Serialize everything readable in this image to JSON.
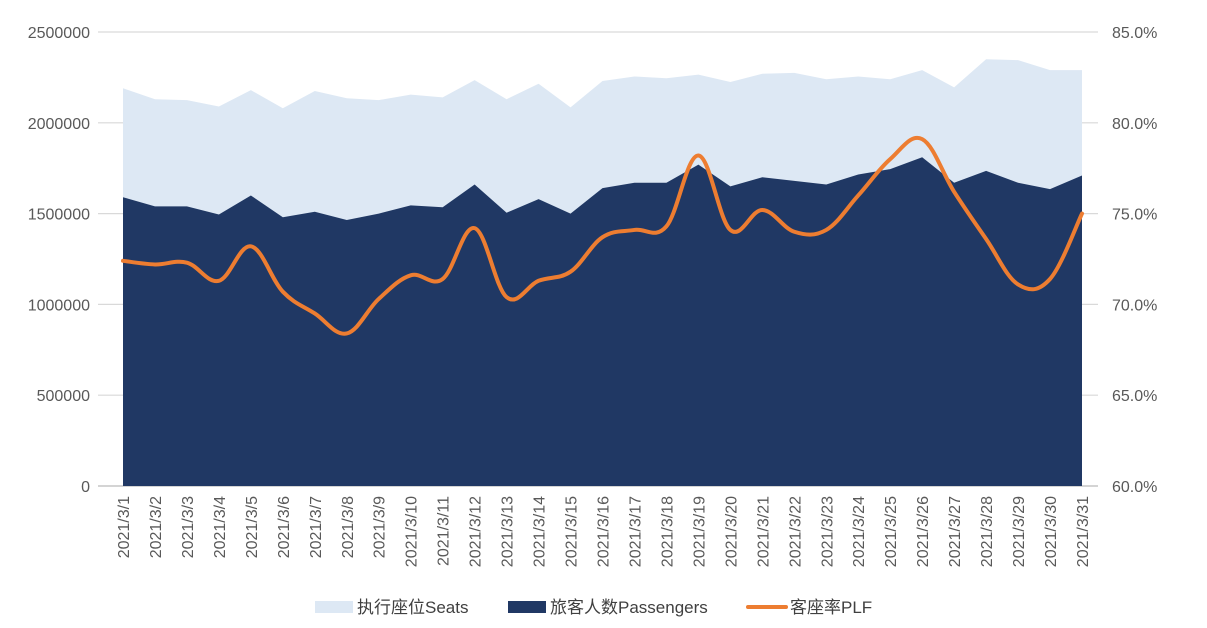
{
  "chart_data": {
    "type": "area",
    "categories": [
      "2021/3/1",
      "2021/3/2",
      "2021/3/3",
      "2021/3/4",
      "2021/3/5",
      "2021/3/6",
      "2021/3/7",
      "2021/3/8",
      "2021/3/9",
      "2021/3/10",
      "2021/3/11",
      "2021/3/12",
      "2021/3/13",
      "2021/3/14",
      "2021/3/15",
      "2021/3/16",
      "2021/3/17",
      "2021/3/18",
      "2021/3/19",
      "2021/3/20",
      "2021/3/21",
      "2021/3/22",
      "2021/3/23",
      "2021/3/24",
      "2021/3/25",
      "2021/3/26",
      "2021/3/27",
      "2021/3/28",
      "2021/3/29",
      "2021/3/30",
      "2021/3/31"
    ],
    "series": [
      {
        "name": "执行座位Seats",
        "kind": "area",
        "axis": "left",
        "color": "#dde8f4",
        "values": [
          2190000,
          2130000,
          2125000,
          2090000,
          2180000,
          2080000,
          2175000,
          2135000,
          2125000,
          2155000,
          2140000,
          2235000,
          2130000,
          2215000,
          2085000,
          2230000,
          2255000,
          2245000,
          2265000,
          2225000,
          2270000,
          2275000,
          2240000,
          2255000,
          2240000,
          2290000,
          2195000,
          2350000,
          2345000,
          2290000,
          2290000
        ]
      },
      {
        "name": "旅客人数Passengers",
        "kind": "area",
        "axis": "left",
        "color": "#203864",
        "values": [
          1590000,
          1540000,
          1540000,
          1495000,
          1600000,
          1480000,
          1510000,
          1465000,
          1500000,
          1545000,
          1535000,
          1660000,
          1505000,
          1580000,
          1500000,
          1640000,
          1670000,
          1670000,
          1770000,
          1650000,
          1700000,
          1680000,
          1660000,
          1715000,
          1745000,
          1810000,
          1670000,
          1735000,
          1670000,
          1635000,
          1710000
        ]
      },
      {
        "name": "客座率PLF",
        "kind": "line",
        "axis": "right",
        "color": "#ed7d31",
        "values": [
          0.724,
          0.722,
          0.723,
          0.713,
          0.732,
          0.707,
          0.695,
          0.684,
          0.703,
          0.716,
          0.714,
          0.742,
          0.704,
          0.713,
          0.718,
          0.737,
          0.741,
          0.743,
          0.782,
          0.741,
          0.752,
          0.74,
          0.741,
          0.76,
          0.78,
          0.791,
          0.762,
          0.736,
          0.711,
          0.714,
          0.75
        ]
      }
    ],
    "left_axis": {
      "ticks": [
        "0",
        "500000",
        "1000000",
        "1500000",
        "2000000",
        "2500000"
      ],
      "ylim": [
        0,
        2500000
      ]
    },
    "right_axis": {
      "ticks": [
        "60.0%",
        "65.0%",
        "70.0%",
        "75.0%",
        "80.0%",
        "85.0%"
      ],
      "ylim": [
        0.6,
        0.85
      ]
    },
    "grid": true,
    "legend_position": "bottom"
  }
}
